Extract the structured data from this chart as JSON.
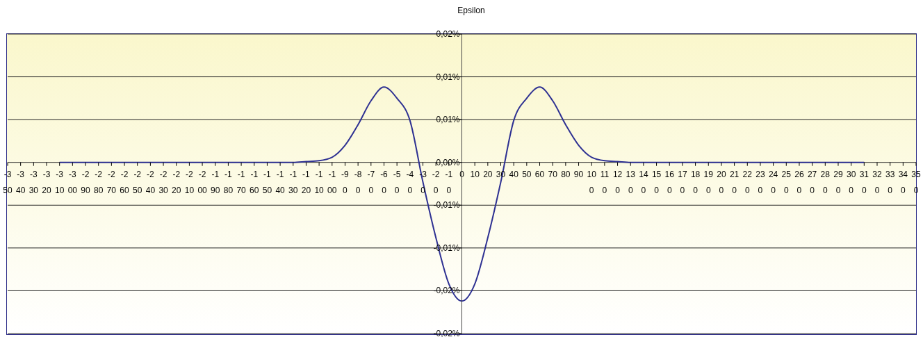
{
  "chart_data": {
    "type": "line",
    "title": "Epsilon",
    "xlim": [
      -350,
      350
    ],
    "xticks": [
      -350,
      -340,
      -330,
      -320,
      -310,
      -300,
      -290,
      -280,
      -270,
      -260,
      -250,
      -240,
      -230,
      -220,
      -210,
      -200,
      -190,
      -180,
      -170,
      -160,
      -150,
      -140,
      -130,
      -120,
      -110,
      -100,
      -90,
      -80,
      -70,
      -60,
      -50,
      -40,
      -30,
      -20,
      -10,
      0,
      10,
      20,
      30,
      40,
      50,
      60,
      70,
      80,
      90,
      100,
      110,
      120,
      130,
      140,
      150,
      160,
      170,
      180,
      190,
      200,
      210,
      220,
      230,
      240,
      250,
      260,
      270,
      280,
      290,
      300,
      310,
      320,
      330,
      340,
      350
    ],
    "ylim": [
      -0.02,
      0.015
    ],
    "yticks": [
      {
        "value": 0.015,
        "label": "0,02%"
      },
      {
        "value": 0.01,
        "label": "0,01%"
      },
      {
        "value": 0.005,
        "label": "0,01%"
      },
      {
        "value": 0,
        "label": "0,00%"
      },
      {
        "value": -0.005,
        "label": "-0,01%"
      },
      {
        "value": -0.01,
        "label": "-0,01%"
      },
      {
        "value": -0.015,
        "label": "-0,02%"
      },
      {
        "value": -0.02,
        "label": "-0,02%"
      }
    ],
    "grid": "y",
    "x": [
      -310,
      -250,
      -200,
      -150,
      -130,
      -120,
      -110,
      -100,
      -90,
      -80,
      -70,
      -60,
      -50,
      -40,
      -30,
      -20,
      -10,
      0,
      10,
      20,
      30,
      40,
      50,
      60,
      70,
      80,
      90,
      100,
      110,
      120,
      130,
      150,
      200,
      250,
      310
    ],
    "series": [
      {
        "color": "#2e3192",
        "values": [
          0,
          0,
          0,
          0,
          0,
          0.0001,
          0.0002,
          0.0006,
          0.002,
          0.0044,
          0.0072,
          0.0088,
          0.0075,
          0.0049,
          -0.0023,
          -0.0088,
          -0.0142,
          -0.0162,
          -0.0142,
          -0.0088,
          -0.0023,
          0.0049,
          0.0075,
          0.0088,
          0.0072,
          0.0044,
          0.002,
          0.0006,
          0.0002,
          0.0001,
          0,
          0,
          0,
          0,
          0
        ]
      }
    ]
  }
}
